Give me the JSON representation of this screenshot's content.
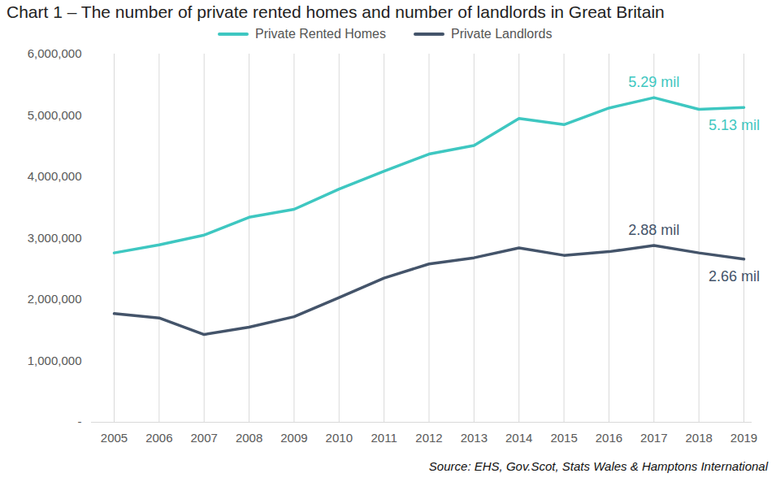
{
  "chart_data": {
    "type": "line",
    "title": "Chart 1 – The number of private rented homes and number of landlords in Great Britain",
    "caption": "Source: EHS, Gov.Scot, Stats Wales & Hamptons International",
    "x": [
      2005,
      2006,
      2007,
      2008,
      2009,
      2010,
      2011,
      2012,
      2013,
      2014,
      2015,
      2016,
      2017,
      2018,
      2019
    ],
    "series": [
      {
        "name": "Private Rented Homes",
        "color": "#3ec7c1",
        "values": [
          2760000,
          2890000,
          3050000,
          3340000,
          3470000,
          3800000,
          4090000,
          4370000,
          4510000,
          4950000,
          4850000,
          5120000,
          5290000,
          5100000,
          5130000
        ]
      },
      {
        "name": "Private Landlords",
        "color": "#44546a",
        "values": [
          1770000,
          1700000,
          1430000,
          1550000,
          1720000,
          2030000,
          2350000,
          2580000,
          2680000,
          2840000,
          2720000,
          2780000,
          2880000,
          2760000,
          2660000
        ]
      }
    ],
    "annotations": [
      {
        "x": 2017,
        "y": 5290000,
        "text": "5.29 mil",
        "series": "Private Rented Homes"
      },
      {
        "x": 2019,
        "y": 5130000,
        "text": "5.13 mil",
        "series": "Private Rented Homes"
      },
      {
        "x": 2017,
        "y": 2880000,
        "text": "2.88 mil",
        "series": "Private Landlords"
      },
      {
        "x": 2019,
        "y": 2660000,
        "text": "2.66 mil",
        "series": "Private Landlords"
      }
    ],
    "xlim": [
      2005,
      2019
    ],
    "xticks": [
      2005,
      2006,
      2007,
      2008,
      2009,
      2010,
      2011,
      2012,
      2013,
      2014,
      2015,
      2016,
      2017,
      2018,
      2019
    ],
    "ylim": [
      0,
      6000000
    ],
    "yticks": [
      {
        "value": 0,
        "label": "-"
      },
      {
        "value": 1000000,
        "label": "1,000,000"
      },
      {
        "value": 2000000,
        "label": "2,000,000"
      },
      {
        "value": 3000000,
        "label": "3,000,000"
      },
      {
        "value": 4000000,
        "label": "4,000,000"
      },
      {
        "value": 5000000,
        "label": "5,000,000"
      },
      {
        "value": 6000000,
        "label": "6,000,000"
      }
    ],
    "grid": "x",
    "legend": "top"
  }
}
